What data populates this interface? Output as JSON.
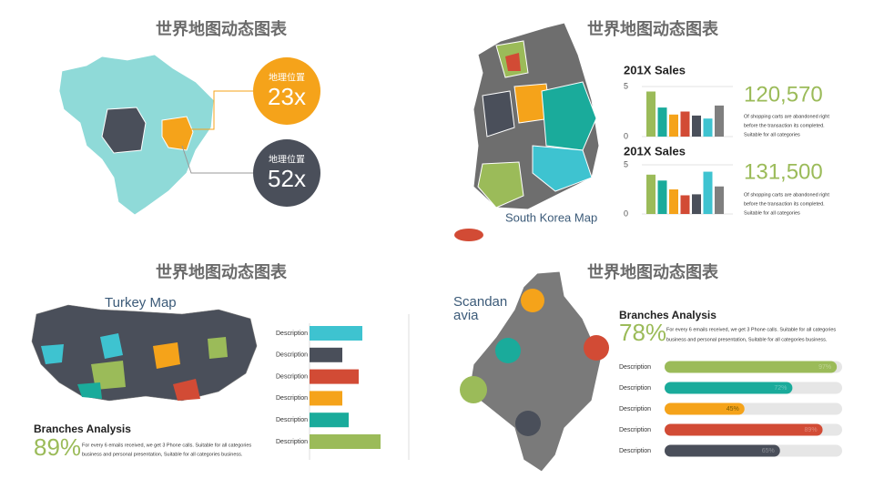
{
  "panels": [
    {
      "title": "世界地图动态图表",
      "callouts": [
        {
          "label": "地理位置",
          "value": "23x",
          "color": "#f5a31a"
        },
        {
          "label": "地理位置",
          "value": "52x",
          "color": "#4a4f5a"
        }
      ]
    },
    {
      "title": "世界地图动态图表",
      "map_label": "South Korea Map",
      "charts": [
        {
          "type": "bar",
          "title": "201X Sales",
          "ylim": [
            0,
            5
          ],
          "yticks": [
            0,
            5
          ],
          "values": [
            4.5,
            2.9,
            2.2,
            2.5,
            2.1,
            1.8,
            3.1
          ],
          "colors": [
            "#9bbb59",
            "#1aab9b",
            "#f5a31a",
            "#d24b35",
            "#4a4f5a",
            "#3ec3d0",
            "#7f7f7f"
          ],
          "stat": "120,570",
          "note": [
            "Of shopping carts are abandoned right",
            "before the transaction its completed.",
            "Suitable for all categories"
          ]
        },
        {
          "type": "bar",
          "title": "201X Sales",
          "ylim": [
            0,
            5
          ],
          "yticks": [
            0,
            5
          ],
          "values": [
            4.0,
            3.4,
            2.5,
            1.9,
            2.0,
            4.3,
            2.8
          ],
          "colors": [
            "#9bbb59",
            "#1aab9b",
            "#f5a31a",
            "#d24b35",
            "#4a4f5a",
            "#3ec3d0",
            "#7f7f7f"
          ],
          "stat": "131,500",
          "note": [
            "Of shopping carts are abandoned right",
            "before the transaction its completed.",
            "Suitable for all categories"
          ]
        }
      ]
    },
    {
      "title": "世界地图动态图表",
      "map_label": "Turkey Map",
      "bars": {
        "type": "bar",
        "categories": [
          "Description",
          "Description",
          "Description",
          "Description",
          "Description",
          "Description"
        ],
        "values": [
          58,
          36,
          54,
          36,
          43,
          78
        ],
        "colors": [
          "#3ec3d0",
          "#4a4f5a",
          "#d24b35",
          "#f5a31a",
          "#1aab9b",
          "#9bbb59"
        ]
      },
      "analysis_title": "Branches Analysis",
      "percent": "89%",
      "text": [
        "For every 6 emails received, we get 3 Phone calls. Suitable for all categories",
        "business and personal presentation, Suitable for all categories business."
      ]
    },
    {
      "title": "世界地图动态图表",
      "map_label": [
        "Scandan",
        "avia"
      ],
      "analysis_title": "Branches Analysis",
      "percent": "78%",
      "text": [
        "For every 6 emails received, we get 3 Phone calls. Suitable for all categories",
        "business and personal presentation, Suitable for all categories business."
      ],
      "progress": {
        "type": "bar",
        "categories": [
          "Description",
          "Description",
          "Description",
          "Description",
          "Description"
        ],
        "values": [
          97,
          72,
          45,
          89,
          65
        ],
        "value_labels": [
          "97%",
          "72%",
          "45%",
          "89%",
          "65%"
        ],
        "colors": [
          "#9bbb59",
          "#1aab9b",
          "#f5a31a",
          "#d24b35",
          "#4a4f5a"
        ]
      }
    }
  ]
}
